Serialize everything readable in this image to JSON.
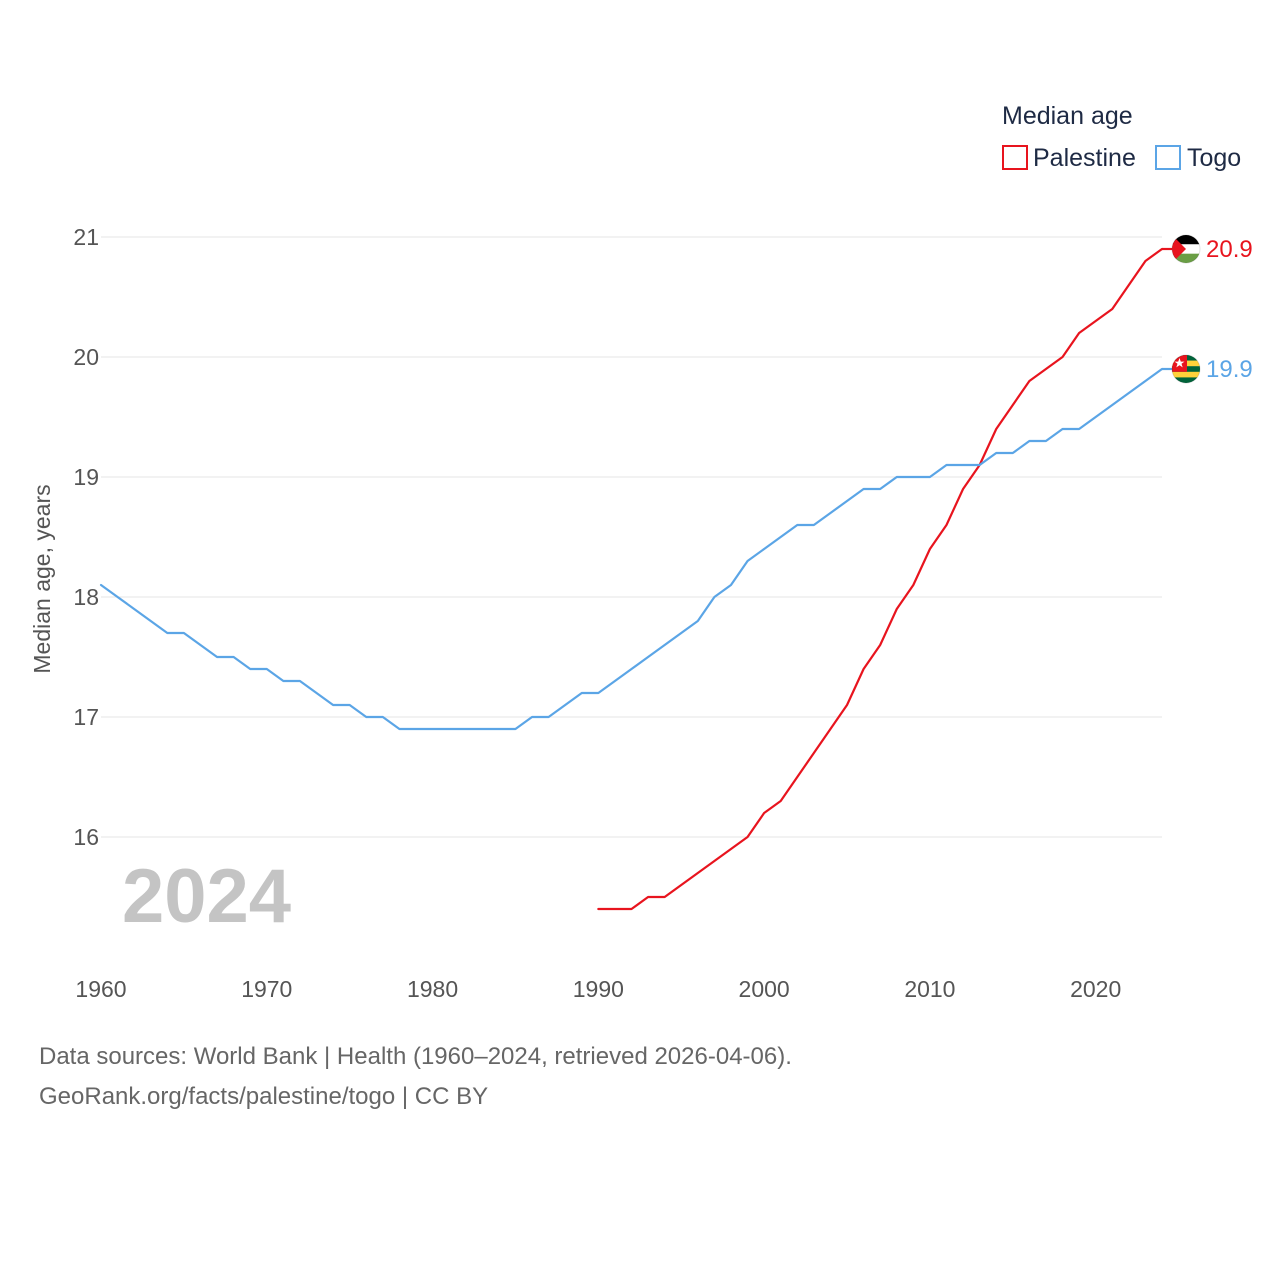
{
  "footer": {
    "sources": "Data sources: World Bank | Health (1960–2024, retrieved 2026-04-06).",
    "link": "GeoRank.org/facts/palestine/togo | CC BY"
  },
  "chart_data": {
    "type": "line",
    "title": "",
    "xlabel": "",
    "ylabel": "Median age, years",
    "xlim": [
      1960,
      2024
    ],
    "ylim": [
      15.1,
      21.2
    ],
    "x_ticks": [
      1960,
      1970,
      1980,
      1990,
      2000,
      2010,
      2020
    ],
    "y_ticks": [
      16,
      17,
      18,
      19,
      20,
      21
    ],
    "grid": true,
    "year_label": "2024",
    "legend": {
      "title": "Median age",
      "position": "top-right"
    },
    "series": [
      {
        "name": "Palestine",
        "color": "#e8141e",
        "icon": "palestine-flag-icon",
        "end_label": "20.9",
        "points": [
          [
            1990,
            15.4
          ],
          [
            1991,
            15.4
          ],
          [
            1992,
            15.4
          ],
          [
            1993,
            15.5
          ],
          [
            1994,
            15.5
          ],
          [
            1995,
            15.6
          ],
          [
            1996,
            15.7
          ],
          [
            1997,
            15.8
          ],
          [
            1998,
            15.9
          ],
          [
            1999,
            16.0
          ],
          [
            2000,
            16.2
          ],
          [
            2001,
            16.3
          ],
          [
            2002,
            16.5
          ],
          [
            2003,
            16.7
          ],
          [
            2004,
            16.9
          ],
          [
            2005,
            17.1
          ],
          [
            2006,
            17.4
          ],
          [
            2007,
            17.6
          ],
          [
            2008,
            17.9
          ],
          [
            2009,
            18.1
          ],
          [
            2010,
            18.4
          ],
          [
            2011,
            18.6
          ],
          [
            2012,
            18.9
          ],
          [
            2013,
            19.1
          ],
          [
            2014,
            19.4
          ],
          [
            2015,
            19.6
          ],
          [
            2016,
            19.8
          ],
          [
            2017,
            19.9
          ],
          [
            2018,
            20.0
          ],
          [
            2019,
            20.2
          ],
          [
            2020,
            20.3
          ],
          [
            2021,
            20.4
          ],
          [
            2022,
            20.6
          ],
          [
            2023,
            20.8
          ],
          [
            2024,
            20.9
          ]
        ]
      },
      {
        "name": "Togo",
        "color": "#5ba5e6",
        "icon": "togo-flag-icon",
        "end_label": "19.9",
        "points": [
          [
            1960,
            18.1
          ],
          [
            1961,
            18.0
          ],
          [
            1962,
            17.9
          ],
          [
            1963,
            17.8
          ],
          [
            1964,
            17.7
          ],
          [
            1965,
            17.7
          ],
          [
            1966,
            17.6
          ],
          [
            1967,
            17.5
          ],
          [
            1968,
            17.5
          ],
          [
            1969,
            17.4
          ],
          [
            1970,
            17.4
          ],
          [
            1971,
            17.3
          ],
          [
            1972,
            17.3
          ],
          [
            1973,
            17.2
          ],
          [
            1974,
            17.1
          ],
          [
            1975,
            17.1
          ],
          [
            1976,
            17.0
          ],
          [
            1977,
            17.0
          ],
          [
            1978,
            16.9
          ],
          [
            1979,
            16.9
          ],
          [
            1980,
            16.9
          ],
          [
            1981,
            16.9
          ],
          [
            1982,
            16.9
          ],
          [
            1983,
            16.9
          ],
          [
            1984,
            16.9
          ],
          [
            1985,
            16.9
          ],
          [
            1986,
            17.0
          ],
          [
            1987,
            17.0
          ],
          [
            1988,
            17.1
          ],
          [
            1989,
            17.2
          ],
          [
            1990,
            17.2
          ],
          [
            1991,
            17.3
          ],
          [
            1992,
            17.4
          ],
          [
            1993,
            17.5
          ],
          [
            1994,
            17.6
          ],
          [
            1995,
            17.7
          ],
          [
            1996,
            17.8
          ],
          [
            1997,
            18.0
          ],
          [
            1998,
            18.1
          ],
          [
            1999,
            18.3
          ],
          [
            2000,
            18.4
          ],
          [
            2001,
            18.5
          ],
          [
            2002,
            18.6
          ],
          [
            2003,
            18.6
          ],
          [
            2004,
            18.7
          ],
          [
            2005,
            18.8
          ],
          [
            2006,
            18.9
          ],
          [
            2007,
            18.9
          ],
          [
            2008,
            19.0
          ],
          [
            2009,
            19.0
          ],
          [
            2010,
            19.0
          ],
          [
            2011,
            19.1
          ],
          [
            2012,
            19.1
          ],
          [
            2013,
            19.1
          ],
          [
            2014,
            19.2
          ],
          [
            2015,
            19.2
          ],
          [
            2016,
            19.3
          ],
          [
            2017,
            19.3
          ],
          [
            2018,
            19.4
          ],
          [
            2019,
            19.4
          ],
          [
            2020,
            19.5
          ],
          [
            2021,
            19.6
          ],
          [
            2022,
            19.7
          ],
          [
            2023,
            19.8
          ],
          [
            2024,
            19.9
          ]
        ]
      }
    ]
  }
}
